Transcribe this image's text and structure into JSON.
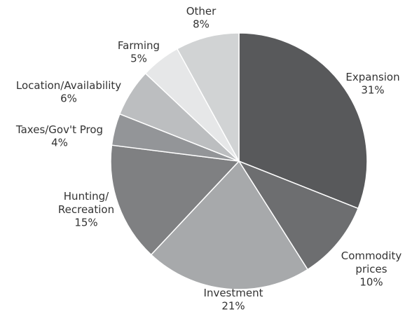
{
  "chart_data": {
    "type": "pie",
    "categories": [
      "Expansion",
      "Commodity\nprices",
      "Investment",
      "Hunting/\nRecreation",
      "Taxes/Gov't Prog",
      "Location/Availability",
      "Farming",
      "Other"
    ],
    "values": [
      31,
      10,
      21,
      15,
      4,
      6,
      5,
      8
    ],
    "value_labels": [
      "31%",
      "10%",
      "21%",
      "15%",
      "4%",
      "6%",
      "5%",
      "8%"
    ],
    "colors": [
      "#58595b",
      "#6d6e70",
      "#a7a9ab",
      "#7f8082",
      "#939598",
      "#bcbec0",
      "#e6e7e8",
      "#d1d3d4"
    ]
  }
}
